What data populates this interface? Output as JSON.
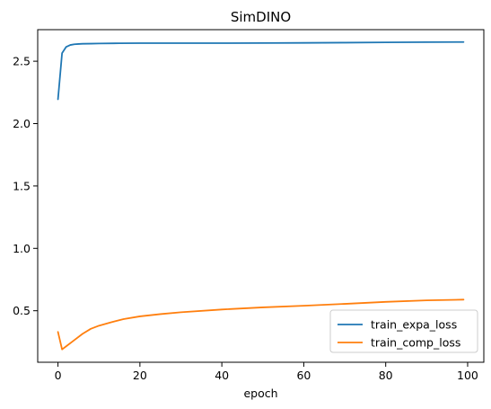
{
  "chart_data": {
    "type": "line",
    "title": "SimDINO",
    "xlabel": "epoch",
    "ylabel": "",
    "xlim": [
      -4.95,
      103.95
    ],
    "ylim": [
      0.087,
      2.753
    ],
    "grid": false,
    "legend_position": "lower-right",
    "x_ticks": [
      0,
      20,
      40,
      60,
      80,
      100
    ],
    "y_ticks": [
      0.5,
      1.0,
      1.5,
      2.0,
      2.5
    ],
    "x_tick_labels": [
      "0",
      "20",
      "40",
      "60",
      "80",
      "100"
    ],
    "y_tick_labels": [
      "0.5",
      "1.0",
      "1.5",
      "2.0",
      "2.5"
    ],
    "series": [
      {
        "name": "train_expa_loss",
        "color": "#1f77b4",
        "x": [
          0,
          1,
          2,
          3,
          4,
          5,
          6,
          8,
          10,
          15,
          20,
          30,
          40,
          50,
          60,
          70,
          80,
          90,
          99
        ],
        "y": [
          2.195,
          2.565,
          2.615,
          2.63,
          2.636,
          2.638,
          2.64,
          2.641,
          2.642,
          2.644,
          2.645,
          2.645,
          2.645,
          2.646,
          2.647,
          2.649,
          2.651,
          2.653,
          2.654
        ]
      },
      {
        "name": "train_comp_loss",
        "color": "#ff7f0e",
        "x": [
          0,
          1,
          2,
          4,
          6,
          8,
          10,
          13,
          16,
          20,
          25,
          30,
          40,
          50,
          60,
          70,
          80,
          90,
          99
        ],
        "y": [
          0.33,
          0.19,
          0.215,
          0.265,
          0.315,
          0.355,
          0.38,
          0.408,
          0.433,
          0.455,
          0.473,
          0.488,
          0.51,
          0.527,
          0.54,
          0.555,
          0.571,
          0.583,
          0.589
        ]
      }
    ]
  }
}
